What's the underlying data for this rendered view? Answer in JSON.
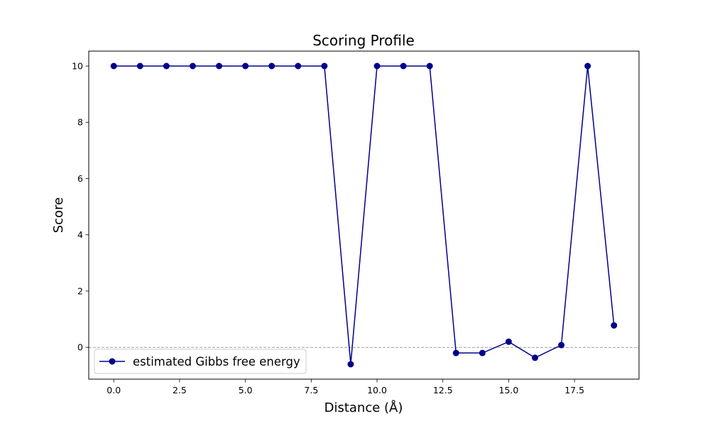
{
  "chart_data": {
    "type": "line",
    "title": "Scoring Profile",
    "xlabel": "Distance (Å)",
    "ylabel": "Score",
    "xlim": [
      -0.95,
      19.95
    ],
    "ylim": [
      -1.13,
      10.53
    ],
    "xticks": [
      0.0,
      2.5,
      5.0,
      7.5,
      10.0,
      12.5,
      15.0,
      17.5
    ],
    "xtick_labels": [
      "0.0",
      "2.5",
      "5.0",
      "7.5",
      "10.0",
      "12.5",
      "15.0",
      "17.5"
    ],
    "yticks": [
      0,
      2,
      4,
      6,
      8,
      10
    ],
    "ytick_labels": [
      "0",
      "2",
      "4",
      "6",
      "8",
      "10"
    ],
    "grid": false,
    "reference_line": {
      "y": 0,
      "style": "dashed",
      "color": "#808080"
    },
    "legend": {
      "placement": "lower-left"
    },
    "series": [
      {
        "name": "estimated Gibbs free energy",
        "color": "#00008b",
        "marker": "circle",
        "x": [
          0,
          1,
          2,
          3,
          4,
          5,
          6,
          7,
          8,
          9,
          10,
          11,
          12,
          13,
          14,
          15,
          16,
          17,
          18,
          19
        ],
        "y": [
          10,
          10,
          10,
          10,
          10,
          10,
          10,
          10,
          10,
          -0.6,
          10,
          10,
          10,
          -0.2,
          -0.2,
          0.2,
          -0.37,
          0.08,
          10,
          0.78
        ]
      }
    ]
  }
}
